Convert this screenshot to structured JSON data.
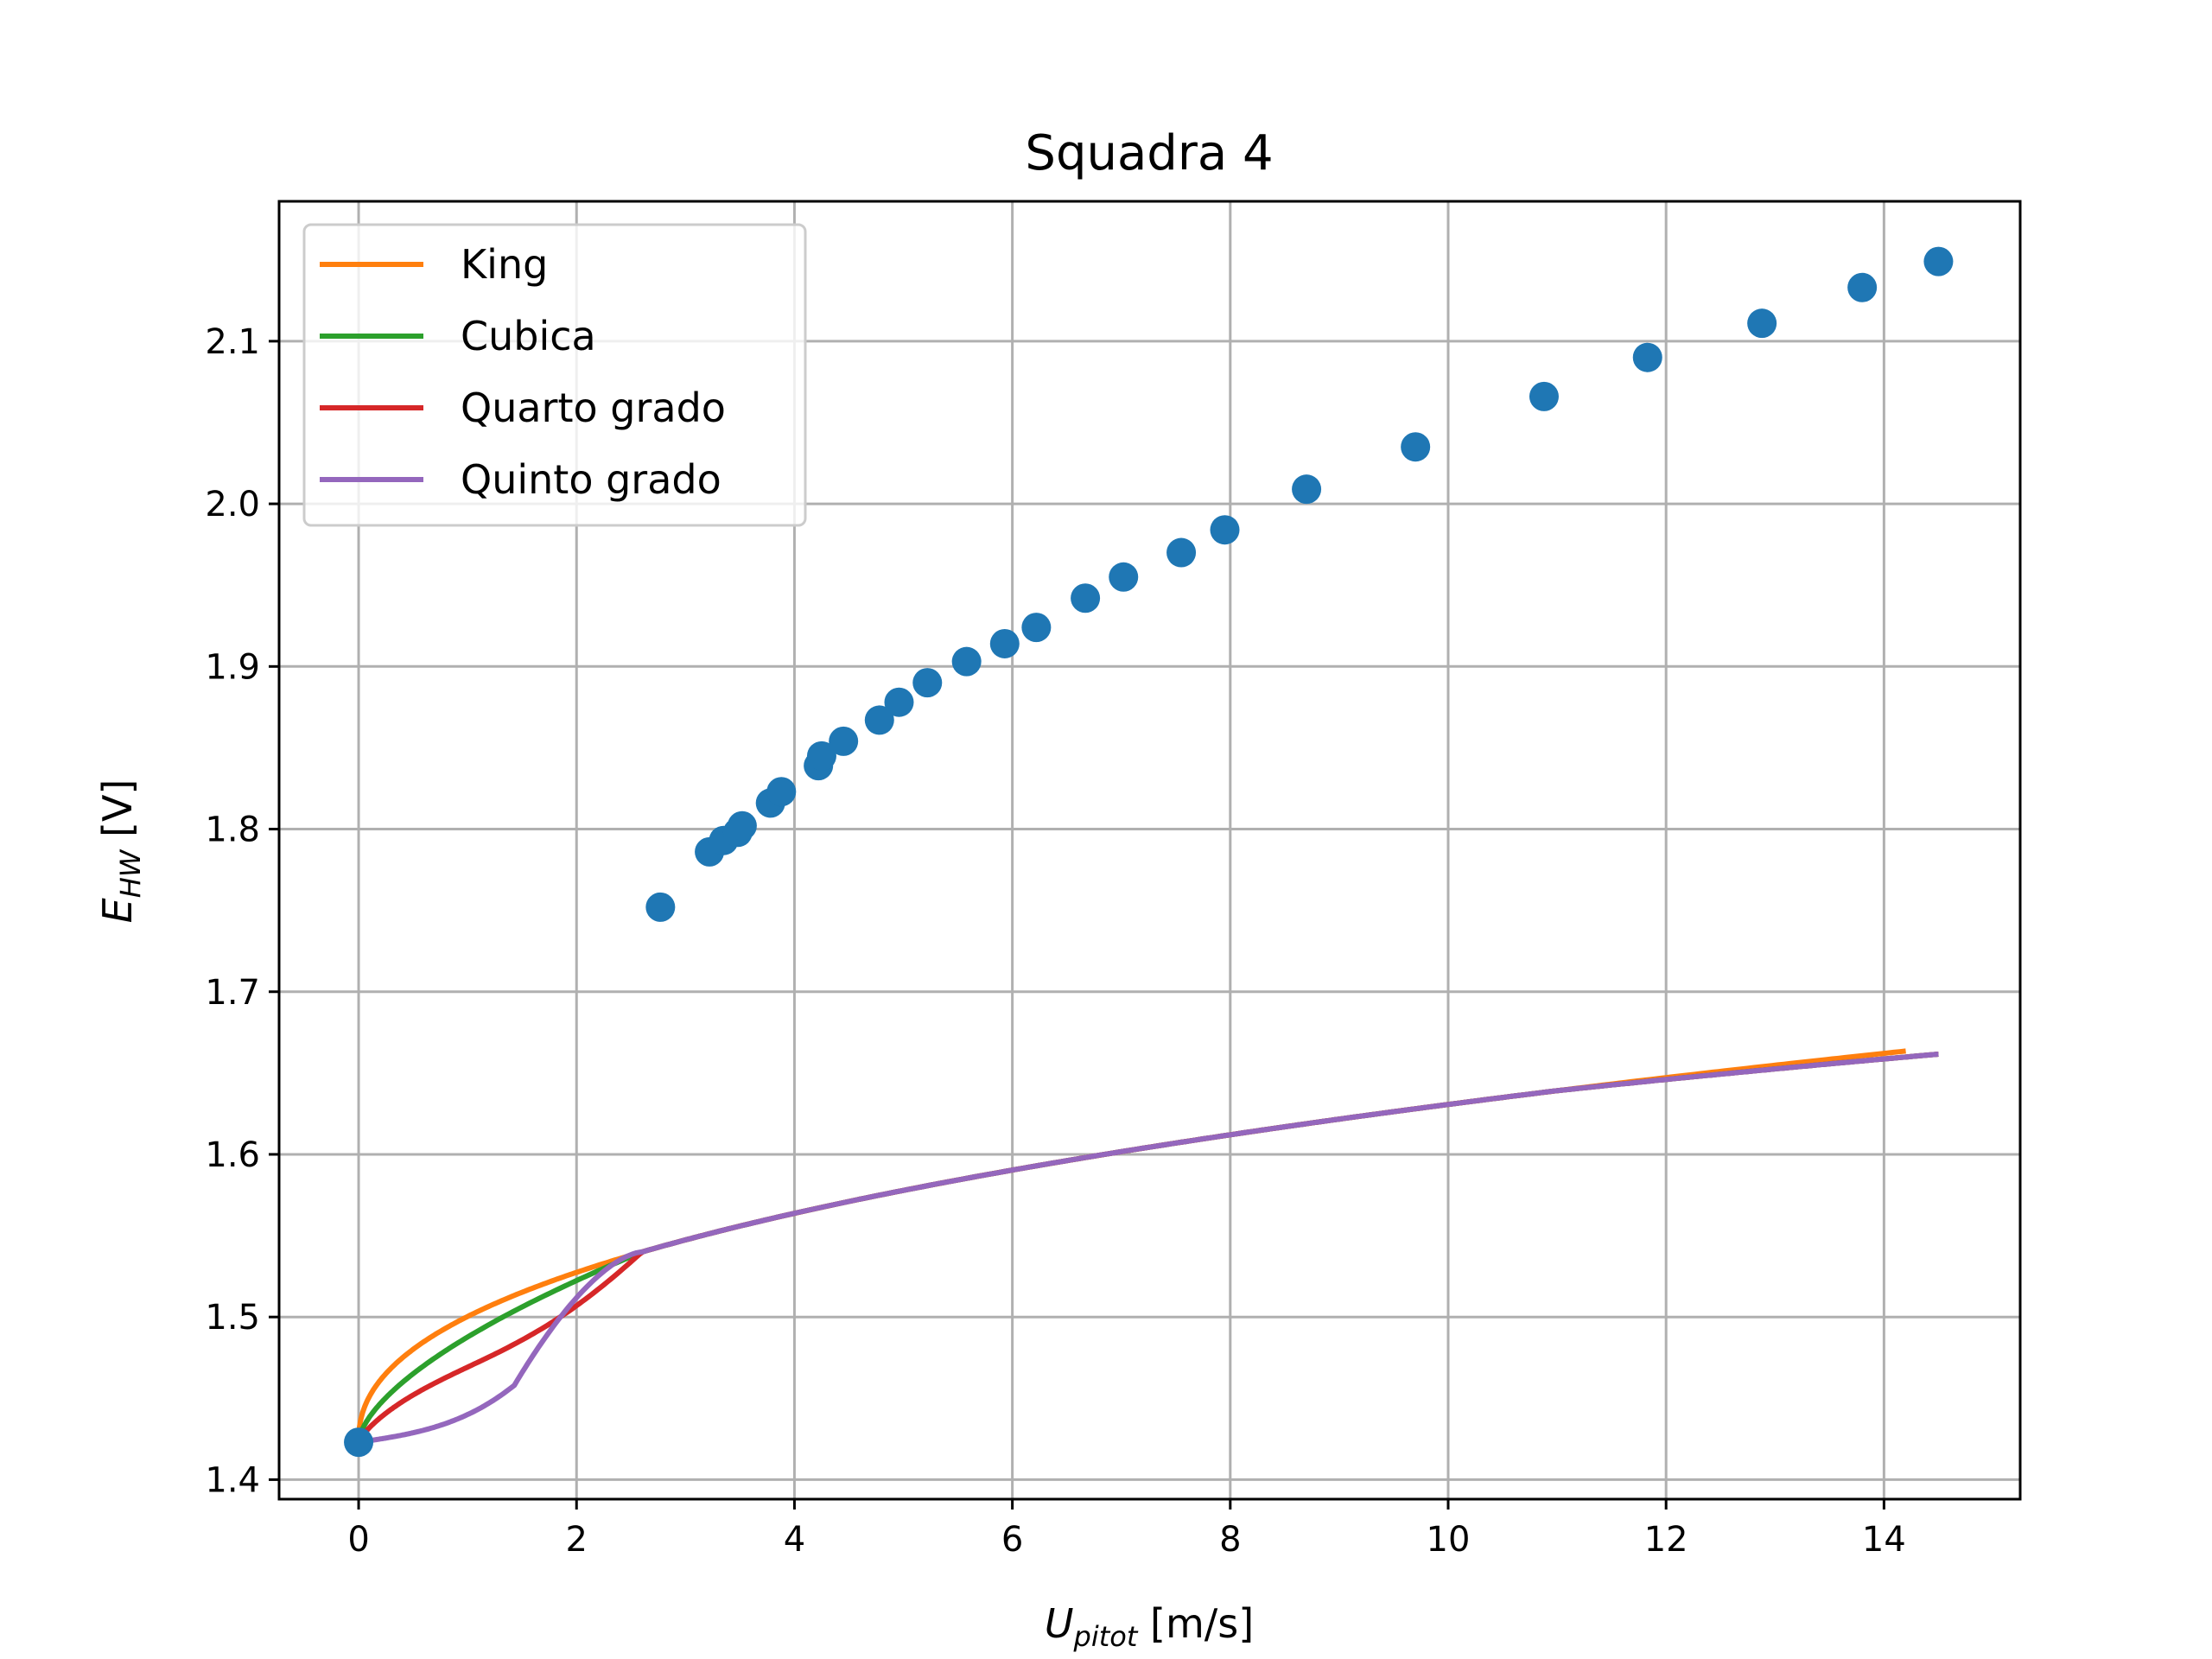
{
  "chart_data": {
    "type": "line",
    "title": "Squadra 4",
    "xlabel": {
      "main": "U",
      "sub": "pitot",
      "unit": " [m/s]"
    },
    "ylabel": {
      "main": "E",
      "sub": "HW",
      "unit": " [V]"
    },
    "xlim": [
      -0.73,
      15.25
    ],
    "ylim": [
      1.388,
      2.186
    ],
    "xticks": [
      0,
      2,
      4,
      6,
      8,
      10,
      12,
      14
    ],
    "yticks": [
      1.4,
      1.5,
      1.6,
      1.7,
      1.8,
      1.9,
      2.0,
      2.1
    ],
    "ytick_labels": [
      "1.4",
      "1.5",
      "1.6",
      "1.7",
      "1.8",
      "1.9",
      "2.0",
      "2.1"
    ],
    "grid": true,
    "legend_position": "top-left",
    "colors": {
      "points": "#1f77b4",
      "King": "#ff7f0e",
      "Cubica": "#2ca02c",
      "Quarto grado": "#d62728",
      "Quinto grado": "#9467bd",
      "grid": "#b0b0b0"
    },
    "points": {
      "x": [
        0,
        2.77,
        3.22,
        3.35,
        3.48,
        3.52,
        3.78,
        3.88,
        4.22,
        4.25,
        4.45,
        4.78,
        4.96,
        5.22,
        5.58,
        5.93,
        6.22,
        6.67,
        7.02,
        7.55,
        7.95,
        8.7,
        9.7,
        10.88,
        11.83,
        12.88,
        13.8,
        14.5
      ],
      "y": [
        1.423,
        1.752,
        1.786,
        1.793,
        1.798,
        1.802,
        1.816,
        1.823,
        1.839,
        1.845,
        1.854,
        1.867,
        1.878,
        1.89,
        1.903,
        1.914,
        1.924,
        1.942,
        1.955,
        1.97,
        1.984,
        2.009,
        2.035,
        2.066,
        2.09,
        2.111,
        2.133,
        2.149
      ]
    },
    "series": [
      {
        "name": "King",
        "x_max": 14.2
      },
      {
        "name": "Cubica",
        "x_max": 14.5
      },
      {
        "name": "Quarto grado",
        "x_max": 14.5
      },
      {
        "name": "Quinto grado",
        "x_max": 14.5
      }
    ]
  }
}
